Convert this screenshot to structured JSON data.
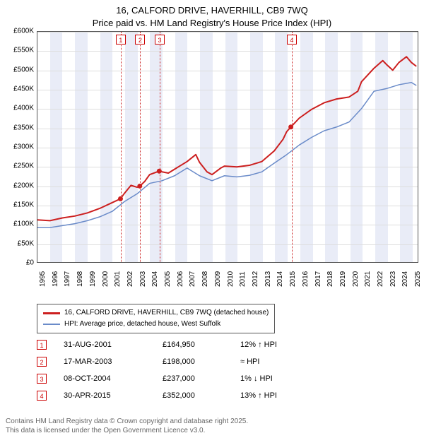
{
  "title": {
    "line1": "16, CALFORD DRIVE, HAVERHILL, CB9 7WQ",
    "line2": "Price paid vs. HM Land Registry's House Price Index (HPI)",
    "fontsize": 13
  },
  "chart": {
    "type": "line",
    "background_color": "#ffffff",
    "grid_color": "#dddddd",
    "band_color": "#e9ecf7",
    "axis_color": "#555555",
    "xlim": [
      1995,
      2025.5
    ],
    "x_ticks": [
      1995,
      1996,
      1997,
      1998,
      1999,
      2000,
      2001,
      2002,
      2003,
      2004,
      2005,
      2006,
      2007,
      2008,
      2009,
      2010,
      2011,
      2012,
      2013,
      2014,
      2015,
      2016,
      2017,
      2018,
      2019,
      2020,
      2021,
      2022,
      2023,
      2024,
      2025
    ],
    "ylim": [
      0,
      600000
    ],
    "y_ticks": [
      0,
      50000,
      100000,
      150000,
      200000,
      250000,
      300000,
      350000,
      400000,
      450000,
      500000,
      550000,
      600000
    ],
    "y_tick_labels": [
      "£0",
      "£50K",
      "£100K",
      "£150K",
      "£200K",
      "£250K",
      "£300K",
      "£350K",
      "£400K",
      "£450K",
      "£500K",
      "£550K",
      "£600K"
    ],
    "y_label_fontsize": 10,
    "x_label_fontsize": 10,
    "alternating_bands": true,
    "series": [
      {
        "name": "price_paid",
        "label": "16, CALFORD DRIVE, HAVERHILL, CB9 7WQ (detached house)",
        "color": "#cc1f1f",
        "width": 2,
        "points": [
          [
            1995,
            110000
          ],
          [
            1996,
            108000
          ],
          [
            1997,
            115000
          ],
          [
            1998,
            120000
          ],
          [
            1999,
            128000
          ],
          [
            2000,
            140000
          ],
          [
            2001,
            155000
          ],
          [
            2001.66,
            164950
          ],
          [
            2002,
            180000
          ],
          [
            2002.5,
            200000
          ],
          [
            2003,
            195000
          ],
          [
            2003.21,
            198000
          ],
          [
            2003.6,
            210000
          ],
          [
            2004,
            228000
          ],
          [
            2004.77,
            237000
          ],
          [
            2005,
            235000
          ],
          [
            2005.5,
            232000
          ],
          [
            2006,
            242000
          ],
          [
            2007,
            262000
          ],
          [
            2007.7,
            280000
          ],
          [
            2008,
            260000
          ],
          [
            2008.6,
            235000
          ],
          [
            2009,
            228000
          ],
          [
            2009.7,
            245000
          ],
          [
            2010,
            250000
          ],
          [
            2011,
            248000
          ],
          [
            2012,
            252000
          ],
          [
            2013,
            262000
          ],
          [
            2014,
            290000
          ],
          [
            2014.7,
            320000
          ],
          [
            2015,
            340000
          ],
          [
            2015.33,
            352000
          ],
          [
            2016,
            375000
          ],
          [
            2017,
            398000
          ],
          [
            2018,
            415000
          ],
          [
            2019,
            425000
          ],
          [
            2020,
            430000
          ],
          [
            2020.7,
            445000
          ],
          [
            2021,
            470000
          ],
          [
            2022,
            505000
          ],
          [
            2022.7,
            525000
          ],
          [
            2023,
            515000
          ],
          [
            2023.5,
            500000
          ],
          [
            2024,
            520000
          ],
          [
            2024.6,
            535000
          ],
          [
            2025,
            520000
          ],
          [
            2025.4,
            510000
          ]
        ]
      },
      {
        "name": "hpi",
        "label": "HPI: Average price, detached house, West Suffolk",
        "color": "#6a8bc9",
        "width": 1.5,
        "points": [
          [
            1995,
            90000
          ],
          [
            1996,
            90000
          ],
          [
            1997,
            95000
          ],
          [
            1998,
            100000
          ],
          [
            1999,
            108000
          ],
          [
            2000,
            118000
          ],
          [
            2001,
            132000
          ],
          [
            2002,
            158000
          ],
          [
            2003,
            178000
          ],
          [
            2004,
            205000
          ],
          [
            2005,
            212000
          ],
          [
            2006,
            225000
          ],
          [
            2007,
            245000
          ],
          [
            2008,
            225000
          ],
          [
            2009,
            212000
          ],
          [
            2010,
            225000
          ],
          [
            2011,
            222000
          ],
          [
            2012,
            226000
          ],
          [
            2013,
            235000
          ],
          [
            2014,
            258000
          ],
          [
            2015,
            280000
          ],
          [
            2016,
            305000
          ],
          [
            2017,
            325000
          ],
          [
            2018,
            342000
          ],
          [
            2019,
            352000
          ],
          [
            2020,
            365000
          ],
          [
            2021,
            400000
          ],
          [
            2022,
            445000
          ],
          [
            2023,
            452000
          ],
          [
            2024,
            462000
          ],
          [
            2025,
            468000
          ],
          [
            2025.4,
            460000
          ]
        ]
      }
    ],
    "sale_markers": [
      {
        "n": "1",
        "x": 2001.66,
        "y": 164950
      },
      {
        "n": "2",
        "x": 2003.21,
        "y": 198000
      },
      {
        "n": "3",
        "x": 2004.77,
        "y": 237000
      },
      {
        "n": "4",
        "x": 2015.33,
        "y": 352000
      }
    ],
    "marker_box_color": "#cc0000",
    "marker_line_color": "#cc2222"
  },
  "legend": {
    "items": [
      {
        "color": "#cc1f1f",
        "label": "16, CALFORD DRIVE, HAVERHILL, CB9 7WQ (detached house)"
      },
      {
        "color": "#6a8bc9",
        "label": "HPI: Average price, detached house, West Suffolk"
      }
    ]
  },
  "sales_table": {
    "rows": [
      {
        "n": "1",
        "date": "31-AUG-2001",
        "price": "£164,950",
        "delta": "12% ↑ HPI"
      },
      {
        "n": "2",
        "date": "17-MAR-2003",
        "price": "£198,000",
        "delta": "≈ HPI"
      },
      {
        "n": "3",
        "date": "08-OCT-2004",
        "price": "£237,000",
        "delta": "1% ↓ HPI"
      },
      {
        "n": "4",
        "date": "30-APR-2015",
        "price": "£352,000",
        "delta": "13% ↑ HPI"
      }
    ]
  },
  "footnote": {
    "line1": "Contains HM Land Registry data © Crown copyright and database right 2025.",
    "line2": "This data is licensed under the Open Government Licence v3.0.",
    "color": "#666666"
  }
}
